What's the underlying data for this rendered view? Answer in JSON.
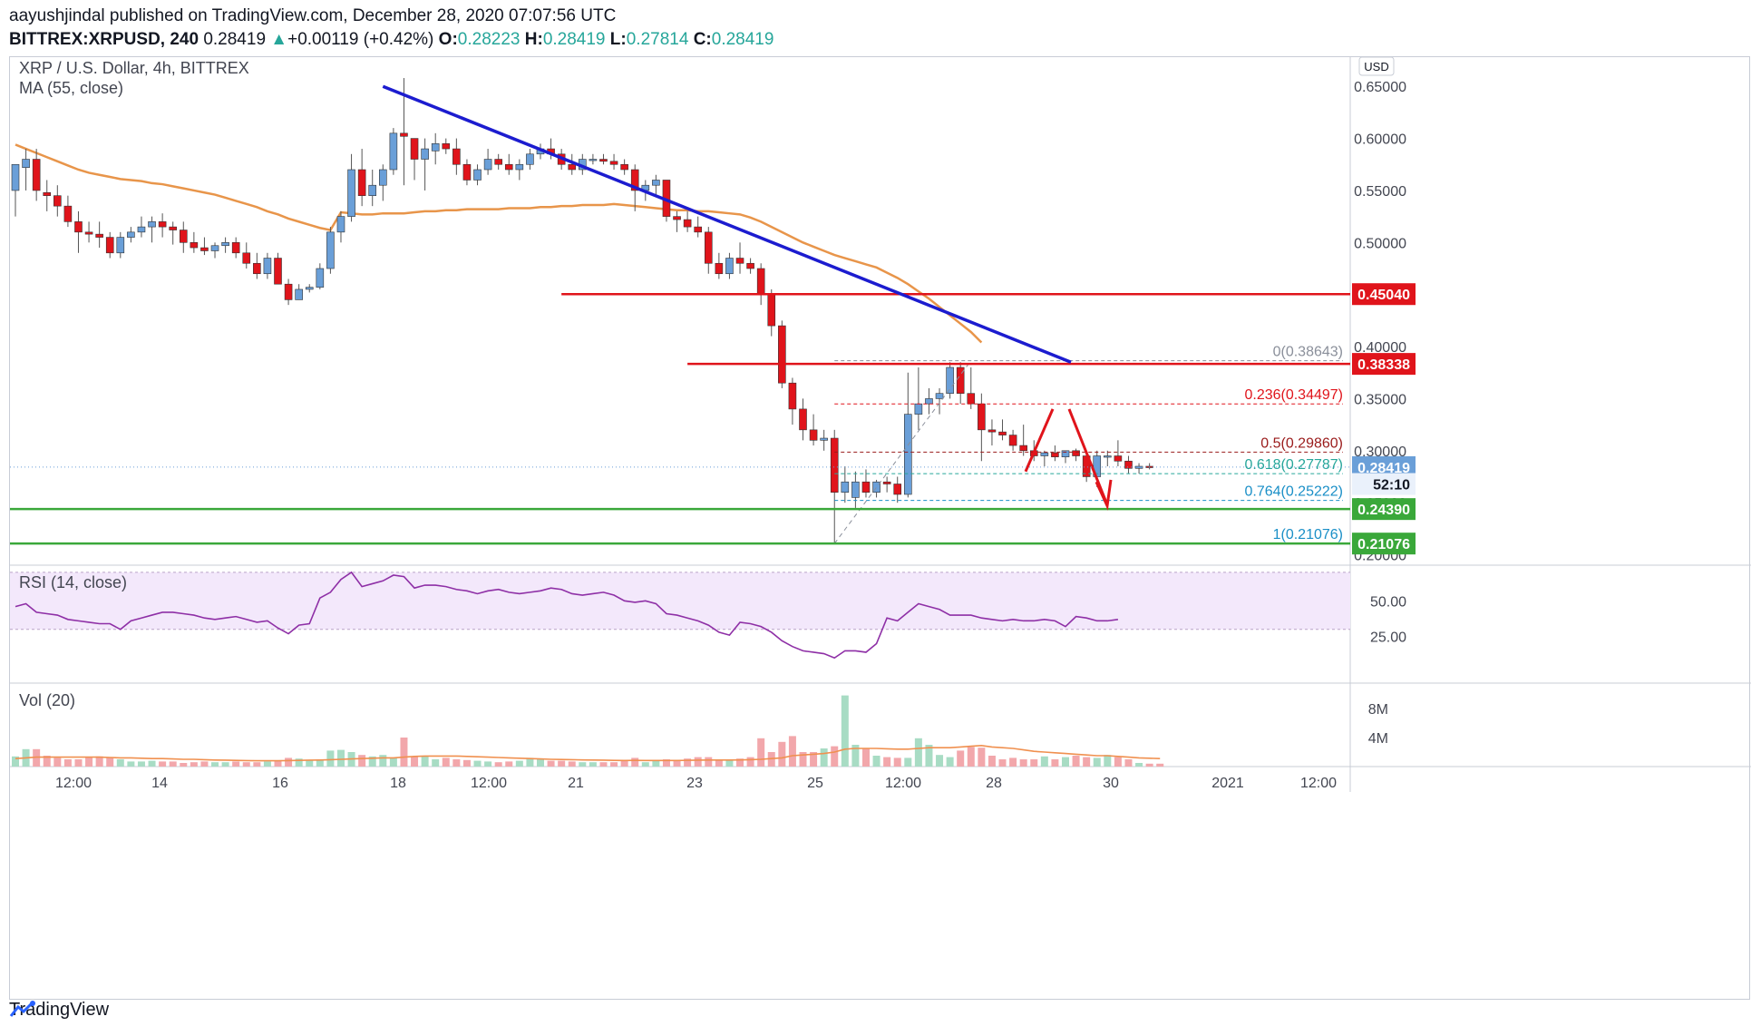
{
  "header": {
    "publisher_line": "aayushjindal published on TradingView.com, December 28, 2020 07:07:56 UTC",
    "symbol": "BITTREX:XRPUSD, 240",
    "last": "0.28419",
    "change_arrow": "▲",
    "change": "+0.00119 (+0.42%)",
    "open_label": "O:",
    "open": "0.28223",
    "high_label": "H:",
    "high": "0.28419",
    "low_label": "L:",
    "low": "0.27814",
    "close_label": "C:",
    "close": "0.28419"
  },
  "footer": {
    "brand": "TradingView"
  },
  "colors": {
    "up": "#6a9fd8",
    "down": "#e0141b",
    "ma": "#e8954a",
    "trendline": "#1c1ccf",
    "resistance": "#e0141b",
    "support": "#3aa83a",
    "rsi": "#8e2fa6",
    "rsi_band": "#f3e8fb"
  },
  "chart_data": {
    "type": "candlestick",
    "title": "XRP / U.S. Dollar, 4h, BITTREX",
    "indicator_ma": "MA (55, close)",
    "currency_button": "USD",
    "ylim": [
      0.19,
      0.665
    ],
    "y_ticks": [
      "0.65000",
      "0.60000",
      "0.55000",
      "0.50000",
      "0.40000",
      "0.35000",
      "0.30000",
      "0.25000",
      "0.20000"
    ],
    "x_ticks": [
      "12:00",
      "14",
      "16",
      "18",
      "12:00",
      "21",
      "23",
      "25",
      "12:00",
      "28",
      "30",
      "2021",
      "12:00"
    ],
    "price_badges": [
      {
        "text": "0.45040",
        "value": 0.4504,
        "color": "#e0141b"
      },
      {
        "text": "0.38338",
        "value": 0.38338,
        "color": "#e0141b"
      },
      {
        "text": "0.28419",
        "value": 0.28419,
        "color": "#6a9fd8"
      },
      {
        "text": "52:10",
        "value": 0.268,
        "color": "#eaf1fb"
      },
      {
        "text": "0.24390",
        "value": 0.2439,
        "color": "#3aa83a"
      },
      {
        "text": "0.21076",
        "value": 0.21076,
        "color": "#3aa83a"
      }
    ],
    "fib_levels": [
      {
        "label": "0(0.38643)",
        "value": 0.38643,
        "color": "#8a8f9a"
      },
      {
        "label": "0.236(0.34497)",
        "value": 0.34497,
        "color": "#e0141b"
      },
      {
        "label": "0.5(0.29860)",
        "value": 0.2986,
        "color": "#9a1b1b"
      },
      {
        "label": "0.618(0.27787)",
        "value": 0.27787,
        "color": "#26a69a"
      },
      {
        "label": "0.764(0.25222)",
        "value": 0.25222,
        "color": "#1a8fc7"
      },
      {
        "label": "1(0.21076)",
        "value": 0.21076,
        "color": "#1a8fc7"
      }
    ],
    "candles": [
      [
        0.55,
        0.575,
        0.525,
        0.575
      ],
      [
        0.572,
        0.59,
        0.55,
        0.58
      ],
      [
        0.58,
        0.59,
        0.54,
        0.55
      ],
      [
        0.548,
        0.56,
        0.53,
        0.545
      ],
      [
        0.545,
        0.555,
        0.525,
        0.535
      ],
      [
        0.535,
        0.545,
        0.515,
        0.52
      ],
      [
        0.52,
        0.53,
        0.49,
        0.51
      ],
      [
        0.51,
        0.52,
        0.5,
        0.508
      ],
      [
        0.508,
        0.52,
        0.495,
        0.505
      ],
      [
        0.505,
        0.51,
        0.485,
        0.49
      ],
      [
        0.49,
        0.51,
        0.485,
        0.505
      ],
      [
        0.505,
        0.515,
        0.5,
        0.51
      ],
      [
        0.51,
        0.525,
        0.505,
        0.515
      ],
      [
        0.515,
        0.525,
        0.5,
        0.52
      ],
      [
        0.52,
        0.528,
        0.505,
        0.515
      ],
      [
        0.515,
        0.52,
        0.498,
        0.512
      ],
      [
        0.512,
        0.52,
        0.49,
        0.5
      ],
      [
        0.5,
        0.51,
        0.49,
        0.495
      ],
      [
        0.495,
        0.505,
        0.488,
        0.492
      ],
      [
        0.492,
        0.5,
        0.485,
        0.497
      ],
      [
        0.497,
        0.505,
        0.49,
        0.5
      ],
      [
        0.5,
        0.505,
        0.485,
        0.49
      ],
      [
        0.49,
        0.5,
        0.475,
        0.48
      ],
      [
        0.48,
        0.49,
        0.465,
        0.47
      ],
      [
        0.47,
        0.49,
        0.465,
        0.485
      ],
      [
        0.485,
        0.49,
        0.46,
        0.46
      ],
      [
        0.46,
        0.465,
        0.44,
        0.445
      ],
      [
        0.445,
        0.46,
        0.445,
        0.455
      ],
      [
        0.455,
        0.46,
        0.452,
        0.457
      ],
      [
        0.457,
        0.48,
        0.455,
        0.475
      ],
      [
        0.475,
        0.515,
        0.47,
        0.51
      ],
      [
        0.51,
        0.53,
        0.5,
        0.525
      ],
      [
        0.525,
        0.585,
        0.52,
        0.57
      ],
      [
        0.57,
        0.59,
        0.535,
        0.545
      ],
      [
        0.545,
        0.57,
        0.535,
        0.555
      ],
      [
        0.555,
        0.575,
        0.54,
        0.57
      ],
      [
        0.57,
        0.61,
        0.565,
        0.605
      ],
      [
        0.605,
        0.658,
        0.555,
        0.602
      ],
      [
        0.6,
        0.6,
        0.56,
        0.58
      ],
      [
        0.58,
        0.6,
        0.55,
        0.59
      ],
      [
        0.588,
        0.605,
        0.575,
        0.595
      ],
      [
        0.595,
        0.6,
        0.585,
        0.59
      ],
      [
        0.59,
        0.6,
        0.565,
        0.575
      ],
      [
        0.575,
        0.58,
        0.555,
        0.56
      ],
      [
        0.56,
        0.575,
        0.555,
        0.57
      ],
      [
        0.57,
        0.59,
        0.565,
        0.58
      ],
      [
        0.58,
        0.585,
        0.57,
        0.575
      ],
      [
        0.575,
        0.585,
        0.565,
        0.57
      ],
      [
        0.57,
        0.58,
        0.56,
        0.575
      ],
      [
        0.575,
        0.59,
        0.57,
        0.585
      ],
      [
        0.585,
        0.595,
        0.58,
        0.59
      ],
      [
        0.59,
        0.6,
        0.58,
        0.585
      ],
      [
        0.585,
        0.59,
        0.57,
        0.575
      ],
      [
        0.575,
        0.585,
        0.565,
        0.57
      ],
      [
        0.57,
        0.585,
        0.565,
        0.58
      ],
      [
        0.58,
        0.585,
        0.575,
        0.58
      ],
      [
        0.58,
        0.585,
        0.575,
        0.578
      ],
      [
        0.578,
        0.585,
        0.57,
        0.575
      ],
      [
        0.575,
        0.58,
        0.565,
        0.57
      ],
      [
        0.57,
        0.575,
        0.53,
        0.55
      ],
      [
        0.55,
        0.56,
        0.54,
        0.555
      ],
      [
        0.555,
        0.565,
        0.545,
        0.56
      ],
      [
        0.56,
        0.56,
        0.52,
        0.525
      ],
      [
        0.525,
        0.53,
        0.51,
        0.522
      ],
      [
        0.522,
        0.53,
        0.51,
        0.515
      ],
      [
        0.515,
        0.525,
        0.505,
        0.51
      ],
      [
        0.51,
        0.515,
        0.47,
        0.48
      ],
      [
        0.48,
        0.49,
        0.465,
        0.47
      ],
      [
        0.47,
        0.49,
        0.465,
        0.485
      ],
      [
        0.485,
        0.5,
        0.47,
        0.48
      ],
      [
        0.48,
        0.485,
        0.47,
        0.475
      ],
      [
        0.475,
        0.48,
        0.44,
        0.45
      ],
      [
        0.45,
        0.455,
        0.41,
        0.42
      ],
      [
        0.42,
        0.425,
        0.36,
        0.365
      ],
      [
        0.365,
        0.37,
        0.325,
        0.34
      ],
      [
        0.34,
        0.35,
        0.31,
        0.32
      ],
      [
        0.32,
        0.335,
        0.305,
        0.31
      ],
      [
        0.31,
        0.32,
        0.3,
        0.312
      ],
      [
        0.312,
        0.32,
        0.21,
        0.26
      ],
      [
        0.26,
        0.285,
        0.25,
        0.27
      ],
      [
        0.255,
        0.28,
        0.245,
        0.27
      ],
      [
        0.27,
        0.282,
        0.255,
        0.26
      ],
      [
        0.26,
        0.272,
        0.255,
        0.27
      ],
      [
        0.27,
        0.275,
        0.26,
        0.268
      ],
      [
        0.268,
        0.275,
        0.25,
        0.258
      ],
      [
        0.258,
        0.375,
        0.255,
        0.335
      ],
      [
        0.335,
        0.38,
        0.32,
        0.345
      ],
      [
        0.345,
        0.36,
        0.335,
        0.35
      ],
      [
        0.35,
        0.36,
        0.335,
        0.355
      ],
      [
        0.355,
        0.385,
        0.35,
        0.38
      ],
      [
        0.38,
        0.385,
        0.345,
        0.355
      ],
      [
        0.355,
        0.38,
        0.34,
        0.345
      ],
      [
        0.345,
        0.355,
        0.29,
        0.32
      ],
      [
        0.32,
        0.33,
        0.305,
        0.318
      ],
      [
        0.318,
        0.33,
        0.31,
        0.315
      ],
      [
        0.315,
        0.32,
        0.3,
        0.305
      ],
      [
        0.305,
        0.325,
        0.295,
        0.3
      ],
      [
        0.3,
        0.31,
        0.29,
        0.295
      ],
      [
        0.295,
        0.3,
        0.285,
        0.298
      ],
      [
        0.298,
        0.305,
        0.29,
        0.294
      ],
      [
        0.294,
        0.3,
        0.288,
        0.3
      ],
      [
        0.3,
        0.302,
        0.29,
        0.295
      ],
      [
        0.295,
        0.298,
        0.27,
        0.275
      ],
      [
        0.275,
        0.3,
        0.265,
        0.295
      ],
      [
        0.295,
        0.3,
        0.285,
        0.295
      ],
      [
        0.295,
        0.31,
        0.285,
        0.29
      ],
      [
        0.29,
        0.295,
        0.278,
        0.283
      ],
      [
        0.283,
        0.288,
        0.278,
        0.285
      ],
      [
        0.285,
        0.288,
        0.282,
        0.284
      ]
    ],
    "ma_values": [
      0.594,
      0.59,
      0.586,
      0.582,
      0.578,
      0.574,
      0.57,
      0.567,
      0.565,
      0.563,
      0.561,
      0.56,
      0.559,
      0.557,
      0.556,
      0.554,
      0.552,
      0.55,
      0.548,
      0.546,
      0.543,
      0.54,
      0.537,
      0.534,
      0.53,
      0.527,
      0.523,
      0.52,
      0.517,
      0.514,
      0.512,
      0.529,
      0.528,
      0.527,
      0.527,
      0.528,
      0.528,
      0.528,
      0.529,
      0.53,
      0.53,
      0.531,
      0.531,
      0.532,
      0.532,
      0.532,
      0.532,
      0.533,
      0.533,
      0.533,
      0.534,
      0.534,
      0.535,
      0.535,
      0.536,
      0.536,
      0.536,
      0.537,
      0.536,
      0.535,
      0.534,
      0.533,
      0.532,
      0.531,
      0.531,
      0.53,
      0.53,
      0.529,
      0.528,
      0.527,
      0.524,
      0.52,
      0.515,
      0.51,
      0.505,
      0.5,
      0.496,
      0.492,
      0.488,
      0.485,
      0.482,
      0.479,
      0.476,
      0.471,
      0.466,
      0.46,
      0.453,
      0.446,
      0.438,
      0.43,
      0.422,
      0.414,
      0.404
    ],
    "rsi_label": "RSI (14, close)",
    "rsi_ticks": [
      "50.00",
      "25.00"
    ],
    "rsi_values": [
      46,
      48,
      42,
      41,
      40,
      37,
      36,
      35,
      34,
      34,
      30,
      36,
      38,
      40,
      42,
      42,
      41,
      40,
      38,
      37,
      38,
      39,
      37,
      35,
      36,
      31,
      27,
      33,
      34,
      52,
      56,
      65,
      70,
      60,
      62,
      64,
      68,
      67,
      59,
      61,
      61,
      60,
      58,
      57,
      55,
      57,
      58,
      56,
      55,
      56,
      57,
      59,
      58,
      55,
      54,
      55,
      56,
      54,
      50,
      49,
      50,
      48,
      41,
      40,
      38,
      36,
      33,
      28,
      26,
      35,
      34,
      32,
      28,
      22,
      18,
      15,
      14,
      13,
      10,
      15,
      15,
      14,
      20,
      38,
      36,
      42,
      48,
      46,
      44,
      40,
      40,
      40,
      38,
      37,
      36,
      37,
      36,
      36,
      37,
      36,
      32,
      39,
      38,
      36,
      36,
      37
    ],
    "vol_label": "Vol (20)",
    "vol_ticks": [
      "8M",
      "4M"
    ],
    "volume": [
      1.4,
      2.4,
      2.4,
      1.5,
      1.2,
      1.0,
      1.0,
      1.3,
      1.4,
      1.2,
      1.0,
      0.7,
      0.7,
      0.8,
      0.7,
      0.7,
      0.5,
      0.6,
      0.7,
      0.6,
      0.6,
      0.7,
      0.6,
      0.6,
      0.7,
      0.8,
      1.2,
      1.1,
      0.9,
      1.0,
      2.2,
      2.3,
      2.0,
      1.6,
      1.4,
      1.6,
      1.2,
      4.0,
      1.4,
      1.4,
      1.0,
      1.2,
      1.0,
      0.9,
      0.8,
      0.7,
      0.6,
      0.7,
      0.8,
      1.2,
      1.0,
      0.8,
      0.8,
      0.7,
      0.6,
      0.6,
      0.6,
      0.6,
      0.9,
      1.2,
      0.6,
      0.9,
      1.0,
      0.9,
      1.1,
      1.3,
      1.3,
      1.0,
      0.9,
      1.1,
      1.3,
      3.9,
      2.0,
      3.4,
      4.2,
      2.0,
      2.0,
      2.5,
      2.8,
      9.8,
      3.0,
      2.5,
      1.5,
      1.3,
      1.2,
      1.2,
      3.9,
      3.0,
      1.6,
      1.3,
      2.2,
      2.7,
      2.6,
      1.5,
      1.0,
      1.2,
      1.0,
      1.0,
      1.4,
      1.0,
      1.3,
      1.5,
      1.3,
      1.2,
      1.6,
      1.3,
      1.0,
      0.5,
      0.4,
      0.4
    ],
    "vol_ma": [
      1.1,
      1.2,
      1.3,
      1.3,
      1.3,
      1.3,
      1.3,
      1.3,
      1.3,
      1.25,
      1.2,
      1.2,
      1.15,
      1.1,
      1.1,
      1.05,
      1.0,
      1.0,
      0.95,
      0.9,
      0.88,
      0.85,
      0.82,
      0.8,
      0.8,
      0.8,
      0.82,
      0.85,
      0.88,
      0.9,
      0.95,
      1.0,
      1.05,
      1.1,
      1.15,
      1.2,
      1.2,
      1.3,
      1.4,
      1.45,
      1.45,
      1.45,
      1.45,
      1.4,
      1.35,
      1.3,
      1.25,
      1.2,
      1.15,
      1.1,
      1.05,
      1.0,
      0.98,
      0.95,
      0.92,
      0.9,
      0.88,
      0.85,
      0.84,
      0.85,
      0.84,
      0.83,
      0.83,
      0.84,
      0.86,
      0.88,
      0.9,
      0.9,
      0.9,
      0.92,
      0.95,
      1.0,
      1.1,
      1.2,
      1.5,
      1.6,
      1.7,
      1.8,
      2.0,
      2.4,
      2.5,
      2.5,
      2.5,
      2.45,
      2.4,
      2.4,
      2.5,
      2.6,
      2.6,
      2.6,
      2.7,
      2.8,
      2.9,
      2.7,
      2.6,
      2.5,
      2.3,
      2.1,
      2.0,
      1.9,
      1.8,
      1.7,
      1.6,
      1.5,
      1.5,
      1.4,
      1.3,
      1.2,
      1.15,
      1.1
    ]
  }
}
